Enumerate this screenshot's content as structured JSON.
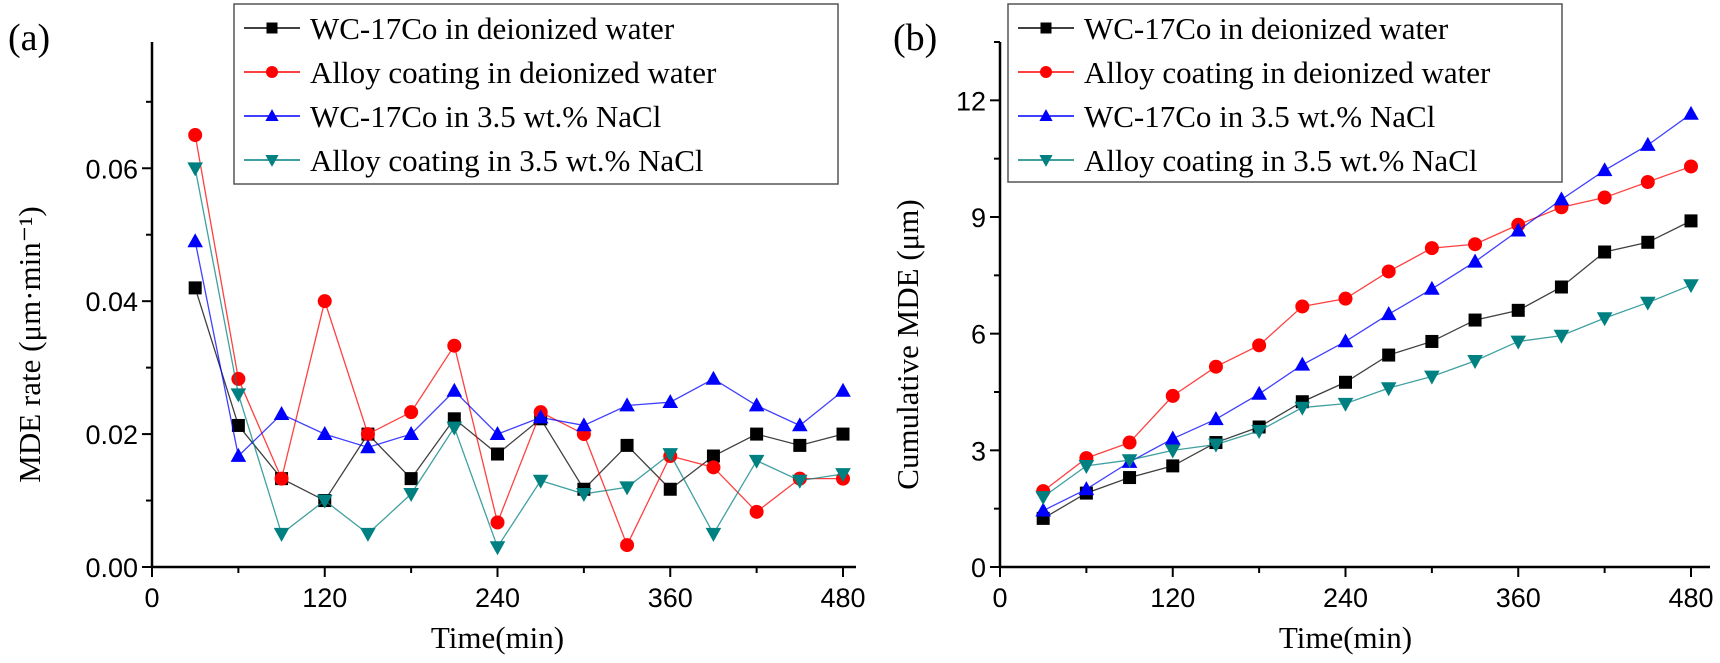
{
  "chart_data": [
    {
      "panel_label": "(a)",
      "type": "line",
      "xlabel": "Time(min)",
      "ylabel": "MDE rate (μm·min⁻¹)",
      "xlim": [
        0,
        490
      ],
      "ylim": [
        0,
        0.079
      ],
      "xticks": [
        0,
        120,
        240,
        360,
        480
      ],
      "xtick_labels": [
        "0",
        "120",
        "240",
        "360",
        "480"
      ],
      "yticks": [
        0,
        0.02,
        0.04,
        0.06
      ],
      "ytick_labels": [
        "0.00",
        "0.02",
        "0.04",
        "0.06"
      ],
      "grid": false,
      "legend_placement": "top",
      "x": [
        30,
        60,
        90,
        120,
        150,
        180,
        210,
        240,
        270,
        300,
        330,
        360,
        390,
        420,
        450,
        480
      ],
      "series": [
        {
          "name": "WC-17Co  in deionized water",
          "color": "#000000",
          "marker": "square",
          "values": [
            0.042,
            0.0213,
            0.0133,
            0.01,
            0.02,
            0.0133,
            0.0223,
            0.017,
            0.0223,
            0.0117,
            0.0183,
            0.0117,
            0.0167,
            0.02,
            0.0183,
            0.02
          ]
        },
        {
          "name": "Alloy coating in deionized water",
          "color": "#ff0000",
          "marker": "circle",
          "values": [
            0.065,
            0.0283,
            0.0133,
            0.04,
            0.02,
            0.0233,
            0.0333,
            0.0067,
            0.0233,
            0.02,
            0.0033,
            0.0167,
            0.015,
            0.0083,
            0.0133,
            0.0133
          ]
        },
        {
          "name": "WC-17Co in 3.5 wt.% NaCl",
          "color": "#0000ff",
          "marker": "triangle-up",
          "values": [
            0.049,
            0.0167,
            0.023,
            0.02,
            0.018,
            0.02,
            0.0265,
            0.02,
            0.0225,
            0.0213,
            0.0243,
            0.0248,
            0.0283,
            0.0243,
            0.0213,
            0.0265
          ]
        },
        {
          "name": "Alloy coating in 3.5 wt.% NaCl",
          "color": "#008080",
          "marker": "triangle-down",
          "values": [
            0.06,
            0.026,
            0.005,
            0.01,
            0.005,
            0.011,
            0.021,
            0.003,
            0.013,
            0.011,
            0.012,
            0.017,
            0.005,
            0.016,
            0.013,
            0.014
          ]
        }
      ]
    },
    {
      "panel_label": "(b)",
      "type": "line",
      "xlabel": "Time(min)",
      "ylabel": "Cumulative MDE (μm)",
      "xlim": [
        0,
        490
      ],
      "ylim": [
        0,
        13.5
      ],
      "xticks": [
        0,
        120,
        240,
        360,
        480
      ],
      "xtick_labels": [
        "0",
        "120",
        "240",
        "360",
        "480"
      ],
      "yticks": [
        0,
        3,
        6,
        9,
        12
      ],
      "ytick_labels": [
        "0",
        "3",
        "6",
        "9",
        "12"
      ],
      "grid": false,
      "legend_placement": "top-left",
      "x": [
        30,
        60,
        90,
        120,
        150,
        180,
        210,
        240,
        270,
        300,
        330,
        360,
        390,
        420,
        450,
        480
      ],
      "series": [
        {
          "name": "WC-17Co  in deionized water",
          "color": "#000000",
          "marker": "square",
          "values": [
            1.25,
            1.9,
            2.3,
            2.6,
            3.2,
            3.6,
            4.25,
            4.75,
            5.45,
            5.8,
            6.35,
            6.6,
            7.2,
            8.1,
            8.35,
            8.9
          ]
        },
        {
          "name": "Alloy coating in deionized water",
          "color": "#ff0000",
          "marker": "circle",
          "values": [
            1.95,
            2.8,
            3.2,
            4.4,
            5.15,
            5.7,
            6.7,
            6.9,
            7.6,
            8.2,
            8.3,
            8.8,
            9.25,
            9.5,
            9.9,
            10.3
          ]
        },
        {
          "name": "WC-17Co  in 3.5 wt.% NaCl",
          "color": "#0000ff",
          "marker": "triangle-up",
          "values": [
            1.45,
            2.0,
            2.7,
            3.3,
            3.8,
            4.45,
            5.2,
            5.8,
            6.5,
            7.15,
            7.85,
            8.65,
            9.45,
            10.2,
            10.85,
            11.65
          ]
        },
        {
          "name": "Alloy coating in 3.5 wt.% NaCl",
          "color": "#008080",
          "marker": "triangle-down",
          "values": [
            1.8,
            2.6,
            2.75,
            3.0,
            3.15,
            3.5,
            4.1,
            4.2,
            4.6,
            4.9,
            5.3,
            5.8,
            5.95,
            6.4,
            6.8,
            7.25
          ]
        }
      ]
    }
  ]
}
